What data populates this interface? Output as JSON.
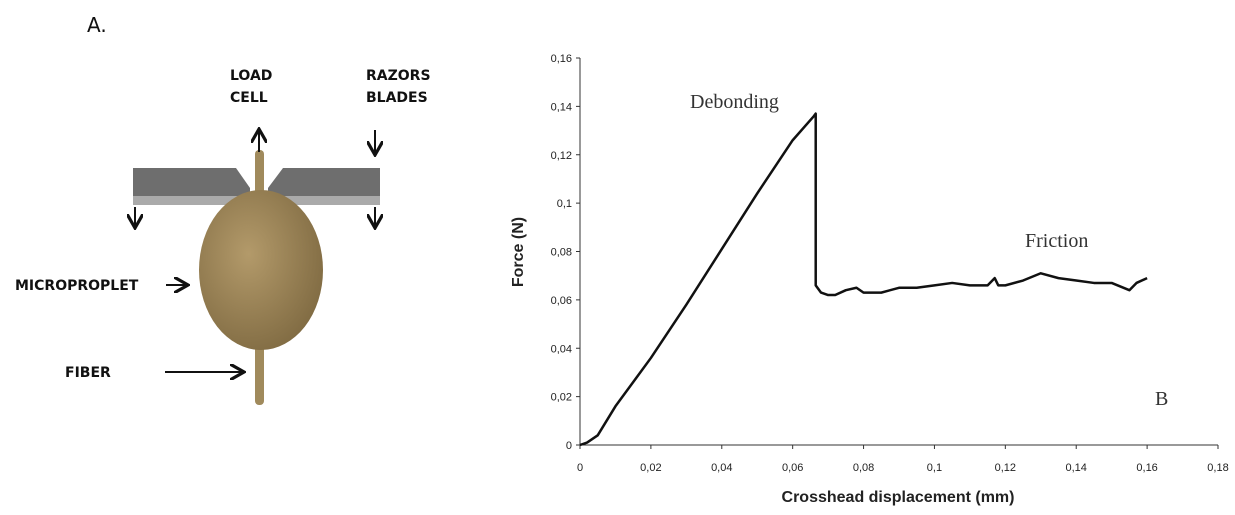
{
  "panel_label": "A.",
  "diagram": {
    "load_cell": [
      "LOAD",
      "CELL"
    ],
    "razor_blades": [
      "RAZORS",
      "BLADES"
    ],
    "droplet": "MICROPROPLET",
    "fiber": "FIBER"
  },
  "chart_data": {
    "type": "line",
    "xlabel": "Crosshead displacement (mm)",
    "ylabel": "Force (N)",
    "annotations": [
      "Debonding",
      "Friction",
      "B"
    ],
    "color": "#111111",
    "x": [
      0,
      0.002,
      0.005,
      0.01,
      0.02,
      0.03,
      0.04,
      0.05,
      0.06,
      0.066,
      0.0665,
      0.0665,
      0.068,
      0.07,
      0.072,
      0.075,
      0.078,
      0.08,
      0.085,
      0.09,
      0.095,
      0.1,
      0.105,
      0.11,
      0.115,
      0.117,
      0.118,
      0.12,
      0.125,
      0.13,
      0.135,
      0.14,
      0.145,
      0.15,
      0.155,
      0.157,
      0.16
    ],
    "values": [
      0,
      0.001,
      0.004,
      0.016,
      0.036,
      0.058,
      0.081,
      0.104,
      0.126,
      0.136,
      0.137,
      0.066,
      0.063,
      0.062,
      0.062,
      0.064,
      0.065,
      0.063,
      0.063,
      0.065,
      0.065,
      0.066,
      0.067,
      0.066,
      0.066,
      0.069,
      0.066,
      0.066,
      0.068,
      0.071,
      0.069,
      0.068,
      0.067,
      0.067,
      0.064,
      0.067,
      0.069
    ],
    "xlim": [
      0,
      0.18
    ],
    "ylim": [
      0,
      0.16
    ],
    "xticks": [
      0,
      {
        "value": 0.02,
        "label": "0,02"
      },
      {
        "value": 0.04,
        "label": "0,04"
      },
      {
        "value": 0.06,
        "label": "0,06"
      },
      {
        "value": 0.08,
        "label": "0,08"
      },
      {
        "value": 0.1,
        "label": "0,1"
      },
      {
        "value": 0.12,
        "label": "0,12"
      },
      {
        "value": 0.14,
        "label": "0,14"
      },
      {
        "value": 0.16,
        "label": "0,16"
      },
      {
        "value": 0.18,
        "label": "0,18"
      }
    ],
    "yticks": [
      0,
      {
        "value": 0.02,
        "label": "0,02"
      },
      {
        "value": 0.04,
        "label": "0,04"
      },
      {
        "value": 0.06,
        "label": "0,06"
      },
      {
        "value": 0.08,
        "label": "0,08"
      },
      {
        "value": 0.1,
        "label": "0,1"
      },
      {
        "value": 0.12,
        "label": "0,12"
      },
      {
        "value": 0.14,
        "label": "0,14"
      },
      {
        "value": 0.16,
        "label": "0,16"
      }
    ],
    "grid": false
  }
}
